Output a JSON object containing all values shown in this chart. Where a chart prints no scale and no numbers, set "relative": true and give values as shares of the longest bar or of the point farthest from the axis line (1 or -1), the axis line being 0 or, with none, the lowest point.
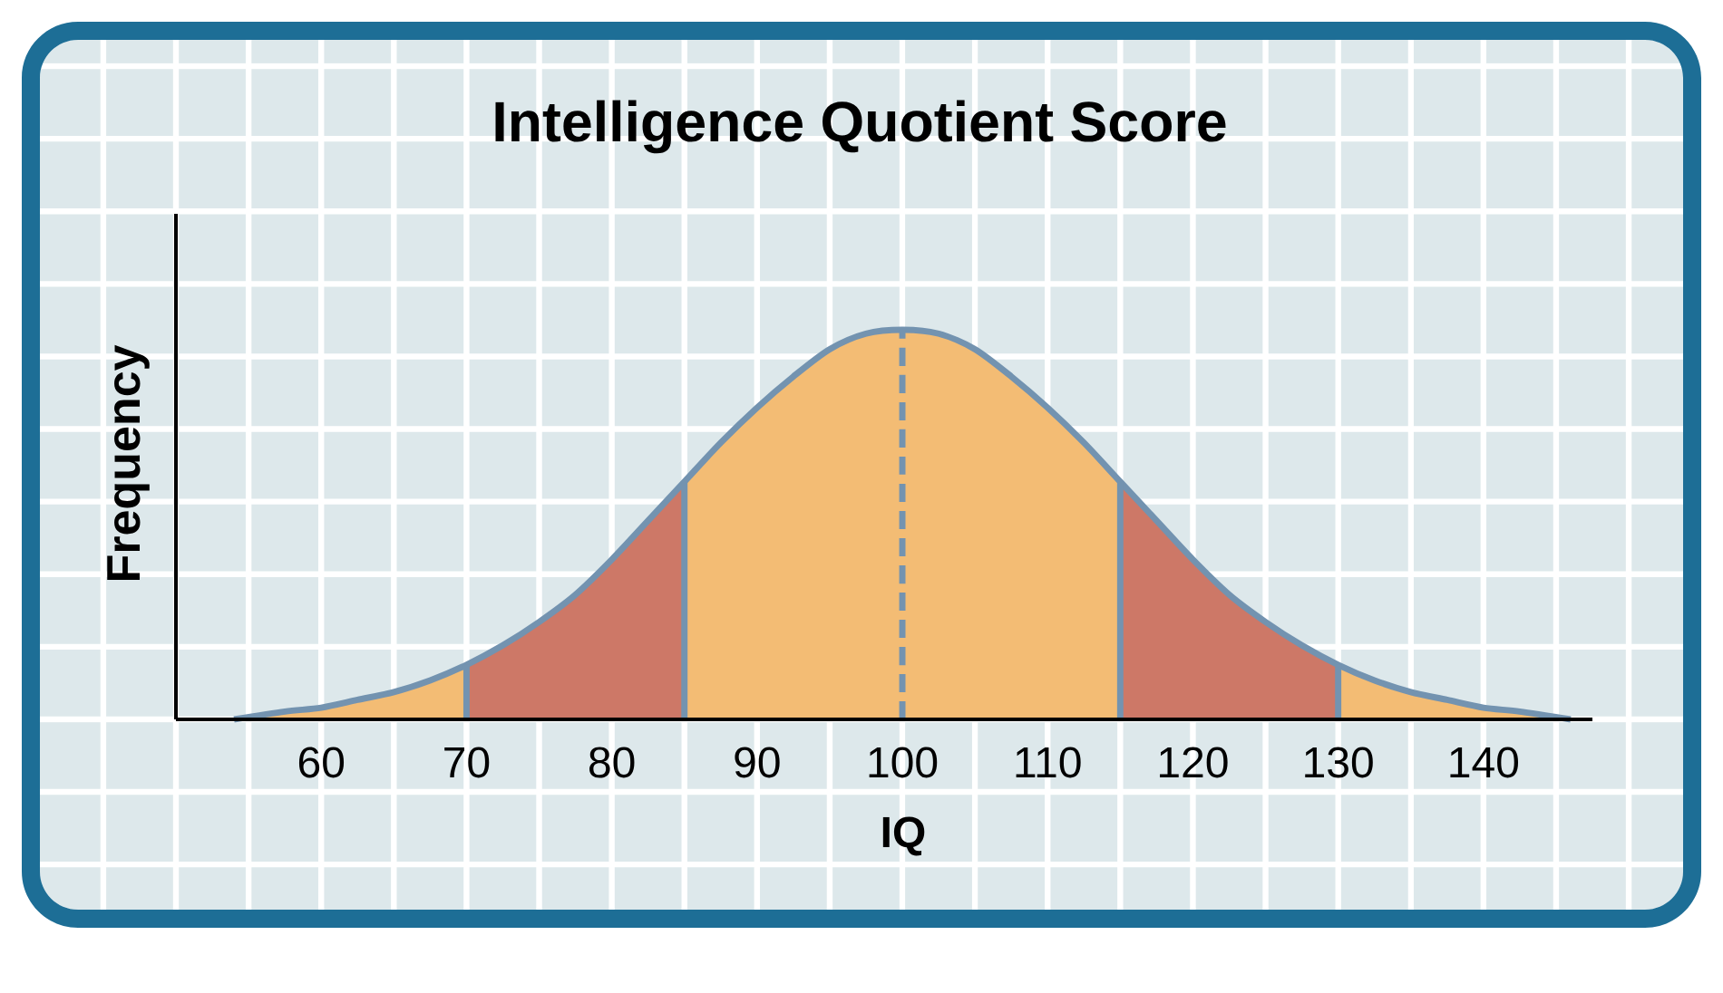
{
  "chart_data": {
    "type": "area",
    "title": "Intelligence Quotient Score",
    "xlabel": "IQ",
    "ylabel": "Frequency",
    "relative": true,
    "grid": true,
    "xlim": [
      50,
      147.5
    ],
    "xticks": [
      60,
      70,
      80,
      90,
      100,
      110,
      120,
      130,
      140
    ],
    "series": [
      {
        "color": "#f3bc74",
        "x": [
          54,
          57.5,
          60,
          62.5,
          65,
          67.5,
          70
        ],
        "values": [
          0,
          0.02,
          0.03,
          0.05,
          0.07,
          0.1,
          0.14
        ]
      },
      {
        "color": "#cd7867",
        "x": [
          70,
          72.5,
          75,
          77.5,
          80,
          82.5,
          85
        ],
        "values": [
          0.14,
          0.19,
          0.25,
          0.32,
          0.41,
          0.51,
          0.61
        ]
      },
      {
        "color": "#f3bc74",
        "x": [
          85,
          87.5,
          90,
          92.5,
          95,
          97.5,
          100,
          102.5,
          105,
          107.5,
          110,
          112.5,
          115
        ],
        "values": [
          0.61,
          0.71,
          0.8,
          0.88,
          0.95,
          0.99,
          1,
          0.99,
          0.95,
          0.88,
          0.8,
          0.71,
          0.61
        ]
      },
      {
        "color": "#cd7867",
        "x": [
          115,
          117.5,
          120,
          122.5,
          125,
          127.5,
          130
        ],
        "values": [
          0.61,
          0.51,
          0.41,
          0.32,
          0.25,
          0.19,
          0.14
        ]
      },
      {
        "color": "#f3bc74",
        "x": [
          130,
          132.5,
          135,
          137.5,
          140,
          142.5,
          146
        ],
        "values": [
          0.14,
          0.1,
          0.07,
          0.05,
          0.03,
          0.02,
          0
        ]
      },
      {
        "type": "line",
        "color": "#7393b0",
        "x": [
          54,
          57.5,
          60,
          62.5,
          65,
          67.5,
          70,
          72.5,
          75,
          77.5,
          80,
          82.5,
          85,
          87.5,
          90,
          92.5,
          95,
          97.5,
          100,
          102.5,
          105,
          107.5,
          110,
          112.5,
          115,
          117.5,
          120,
          122.5,
          125,
          127.5,
          130,
          132.5,
          135,
          137.5,
          140,
          142.5,
          146
        ],
        "values": [
          0,
          0.02,
          0.03,
          0.05,
          0.07,
          0.1,
          0.14,
          0.19,
          0.25,
          0.32,
          0.41,
          0.51,
          0.61,
          0.71,
          0.8,
          0.88,
          0.95,
          0.99,
          1,
          0.99,
          0.95,
          0.88,
          0.8,
          0.71,
          0.61,
          0.51,
          0.41,
          0.32,
          0.25,
          0.19,
          0.14,
          0.1,
          0.07,
          0.05,
          0.03,
          0.02,
          0
        ]
      },
      {
        "type": "line",
        "color": "#7393b0",
        "x": [
          70,
          70
        ],
        "values": [
          0,
          0.14
        ]
      },
      {
        "type": "line",
        "color": "#7393b0",
        "x": [
          85,
          85
        ],
        "values": [
          0,
          0.61
        ]
      },
      {
        "type": "line",
        "color": "#7393b0",
        "x": [
          115,
          115
        ],
        "values": [
          0,
          0.61
        ]
      },
      {
        "type": "line",
        "color": "#7393b0",
        "x": [
          130,
          130
        ],
        "values": [
          0,
          0.14
        ]
      },
      {
        "type": "line",
        "color": "#7393b0",
        "line_style": "dashed",
        "x": [
          100,
          100
        ],
        "values": [
          0,
          1
        ]
      }
    ]
  }
}
